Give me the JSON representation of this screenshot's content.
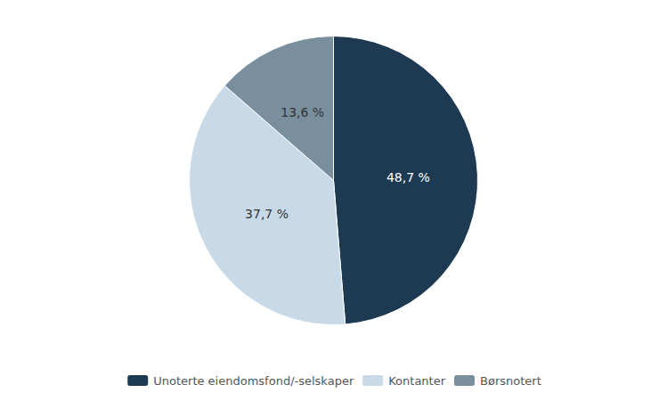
{
  "chart_data": {
    "type": "pie",
    "categories": [
      "Unoterte eiendomsfond/-selskaper",
      "Kontanter",
      "Børsnotert"
    ],
    "values": [
      48.7,
      37.7,
      13.6
    ],
    "value_labels": [
      "48,7 %",
      "37,7 %",
      "13,6 %"
    ],
    "colors": [
      "#1e3a52",
      "#c8d9e8",
      "#7a8f9e"
    ],
    "data_labels": true,
    "legend": "bottom"
  }
}
